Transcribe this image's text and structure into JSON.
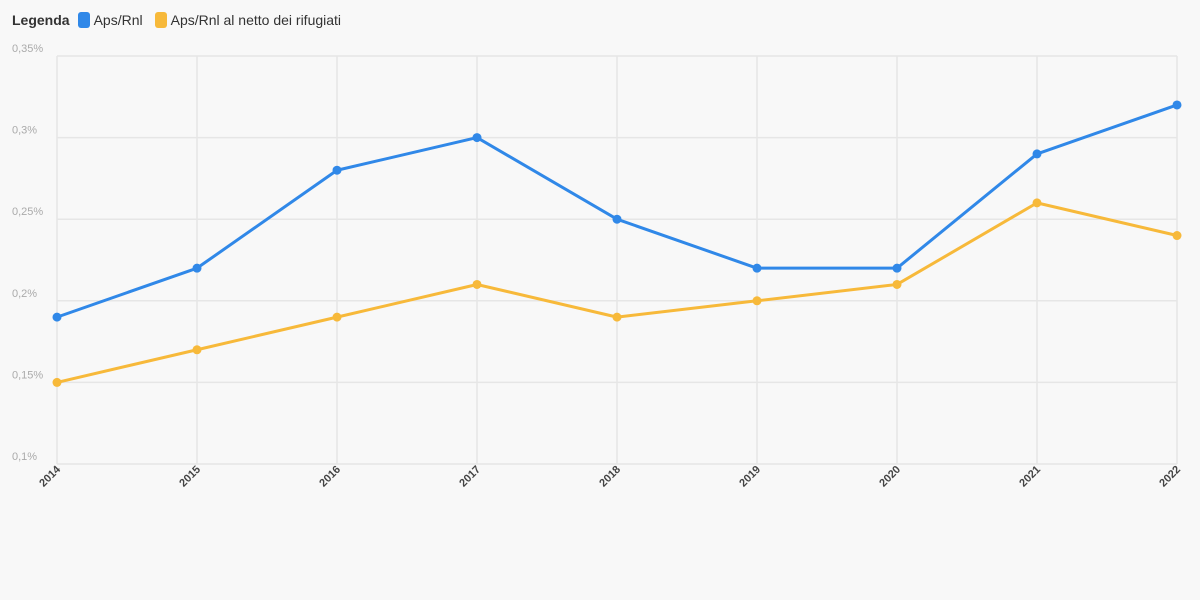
{
  "legend": {
    "title": "Legenda",
    "items": [
      {
        "label": "Aps/Rnl",
        "color": "#3088e8"
      },
      {
        "label": "Aps/Rnl al netto dei rifugiati",
        "color": "#f7b93a"
      }
    ]
  },
  "chart_data": {
    "type": "line",
    "title": "",
    "xlabel": "",
    "ylabel": "",
    "x": [
      "2014",
      "2015",
      "2016",
      "2017",
      "2018",
      "2019",
      "2020",
      "2021",
      "2022"
    ],
    "ylim": [
      0.1,
      0.35
    ],
    "y_ticks": [
      0.1,
      0.15,
      0.2,
      0.25,
      0.3,
      0.35
    ],
    "y_tick_labels": [
      "0,1%",
      "0,15%",
      "0,2%",
      "0,25%",
      "0,3%",
      "0,35%"
    ],
    "grid": true,
    "legend_position": "top-left",
    "series": [
      {
        "name": "Aps/Rnl",
        "color": "#3088e8",
        "values": [
          0.19,
          0.22,
          0.28,
          0.3,
          0.25,
          0.22,
          0.22,
          0.29,
          0.32
        ]
      },
      {
        "name": "Aps/Rnl al netto dei rifugiati",
        "color": "#f7b93a",
        "values": [
          0.15,
          0.17,
          0.19,
          0.21,
          0.19,
          0.2,
          0.21,
          0.26,
          0.24
        ]
      }
    ]
  }
}
